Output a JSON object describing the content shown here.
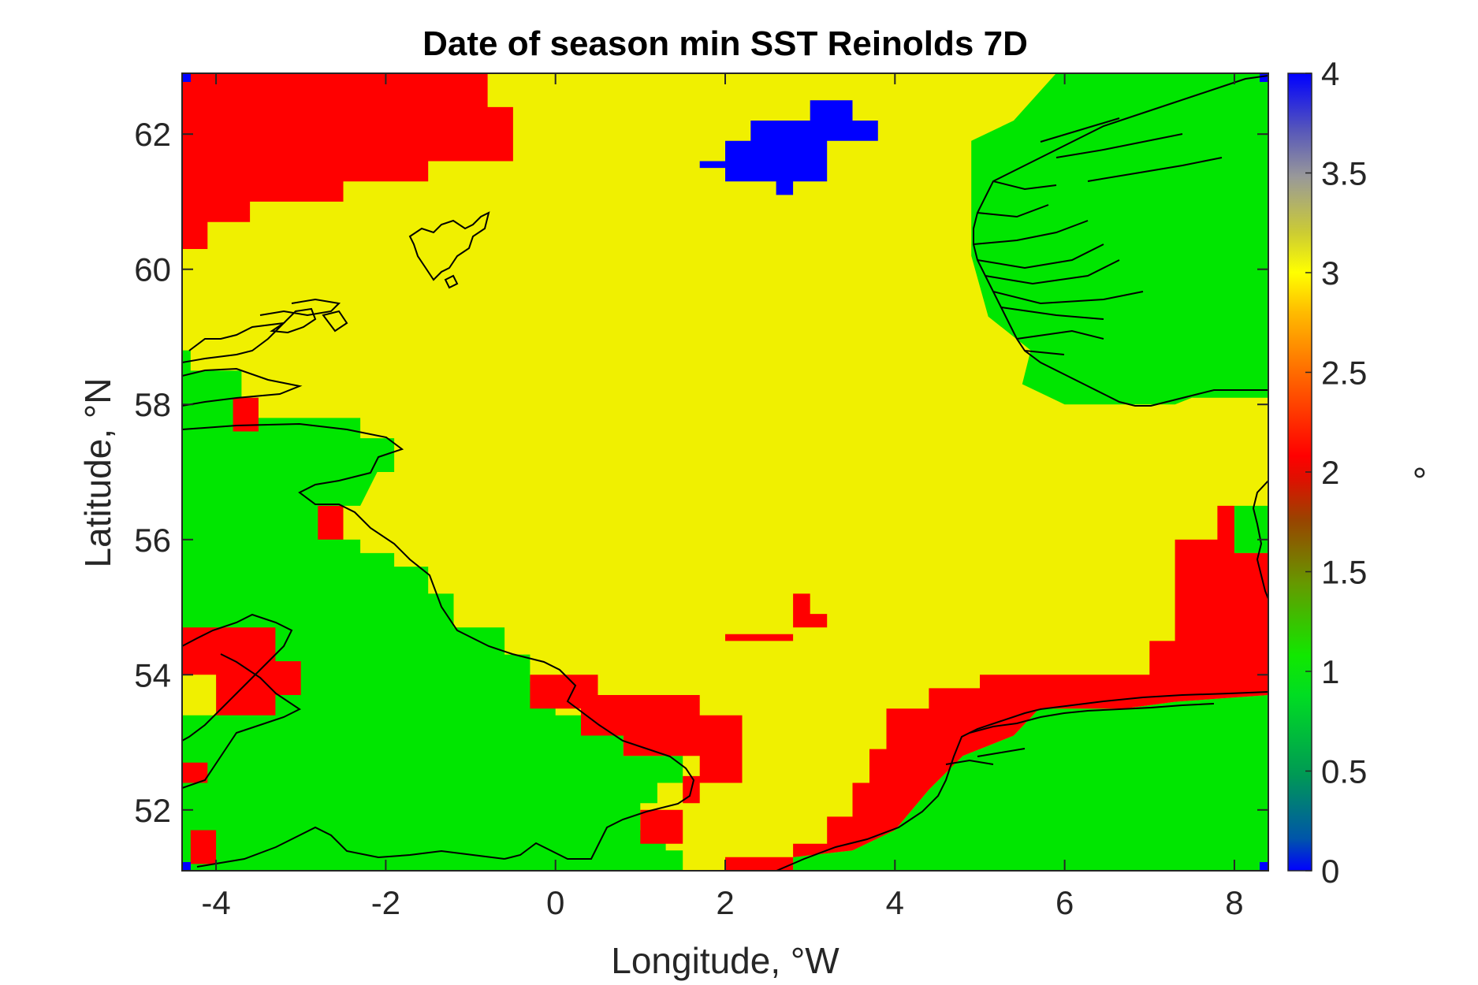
{
  "chart_data": {
    "type": "heatmap",
    "title": "Date of season min SST Reinolds 7D",
    "xlabel": "Longitude, °W",
    "ylabel": "Latitude, °N",
    "xlim": [
      -4.4,
      8.4
    ],
    "ylim": [
      51.1,
      62.9
    ],
    "xticks": [
      -4,
      -2,
      0,
      2,
      4,
      6,
      8
    ],
    "xtick_labels": [
      "-4",
      "-2",
      "0",
      "2",
      "4",
      "6",
      "8"
    ],
    "yticks": [
      52,
      54,
      56,
      58,
      60,
      62
    ],
    "ytick_labels": [
      "52",
      "54",
      "56",
      "58",
      "60",
      "62"
    ],
    "grid": false,
    "colorbar": {
      "label": "°",
      "range": [
        0,
        4
      ],
      "ticks": [
        0,
        0.5,
        1,
        1.5,
        2,
        2.5,
        3,
        3.5,
        4
      ],
      "tick_labels": [
        "0",
        "0.5",
        "1",
        "1.5",
        "2",
        "2.5",
        "3",
        "3.5",
        "4"
      ],
      "colormap": [
        "#0000ff",
        "#00cc33",
        "#00e600",
        "#66bb00",
        "#993300",
        "#ff0000",
        "#ffaa00",
        "#ffff00",
        "#f0f000",
        "#a0a0a0",
        "#0000ff"
      ]
    },
    "category_colors": {
      "0": "#0000ff",
      "1": "#00e600",
      "2": "#ff0000",
      "3": "#f0f000",
      "4": "#0000ff"
    },
    "regions": [
      {
        "value": 3,
        "note": "background sea"
      },
      {
        "value": 2,
        "polygon_lonlat": [
          [
            -4.4,
            62.9
          ],
          [
            -0.8,
            62.9
          ],
          [
            -0.8,
            62.4
          ],
          [
            -0.5,
            62.4
          ],
          [
            -0.5,
            61.6
          ],
          [
            -1.5,
            61.6
          ],
          [
            -1.5,
            61.3
          ],
          [
            -2.5,
            61.3
          ],
          [
            -2.5,
            61.0
          ],
          [
            -3.6,
            61.0
          ],
          [
            -3.6,
            60.7
          ],
          [
            -4.1,
            60.7
          ],
          [
            -4.1,
            60.3
          ],
          [
            -4.4,
            60.3
          ]
        ]
      },
      {
        "value": 4,
        "polygon_lonlat": [
          [
            1.7,
            61.6
          ],
          [
            2.0,
            61.6
          ],
          [
            2.0,
            61.9
          ],
          [
            2.3,
            61.9
          ],
          [
            2.3,
            62.2
          ],
          [
            3.0,
            62.2
          ],
          [
            3.0,
            62.5
          ],
          [
            3.5,
            62.5
          ],
          [
            3.5,
            62.2
          ],
          [
            3.8,
            62.2
          ],
          [
            3.8,
            61.9
          ],
          [
            3.2,
            61.9
          ],
          [
            3.2,
            61.3
          ],
          [
            2.8,
            61.3
          ],
          [
            2.8,
            61.1
          ],
          [
            2.6,
            61.1
          ],
          [
            2.6,
            61.3
          ],
          [
            2.0,
            61.3
          ],
          [
            2.0,
            61.5
          ],
          [
            1.7,
            61.5
          ]
        ]
      },
      {
        "value": 1,
        "polygon_lonlat": [
          [
            5.9,
            62.9
          ],
          [
            8.4,
            62.9
          ],
          [
            8.4,
            58.1
          ],
          [
            7.5,
            58.1
          ],
          [
            7.3,
            58.0
          ],
          [
            6.0,
            58.0
          ],
          [
            5.5,
            58.3
          ],
          [
            5.6,
            58.8
          ],
          [
            5.1,
            59.3
          ],
          [
            4.9,
            60.2
          ],
          [
            4.9,
            61.0
          ],
          [
            4.9,
            61.9
          ],
          [
            5.4,
            62.2
          ],
          [
            5.9,
            62.9
          ]
        ]
      },
      {
        "value": 1,
        "polygon_lonlat": [
          [
            -4.4,
            58.8
          ],
          [
            -4.3,
            58.8
          ],
          [
            -4.3,
            58.5
          ],
          [
            -3.7,
            58.5
          ],
          [
            -3.7,
            58.1
          ],
          [
            -3.5,
            58.1
          ],
          [
            -3.5,
            57.8
          ],
          [
            -2.3,
            57.8
          ],
          [
            -2.3,
            57.5
          ],
          [
            -1.9,
            57.5
          ],
          [
            -1.9,
            57.0
          ],
          [
            -2.1,
            57.0
          ],
          [
            -2.3,
            56.5
          ],
          [
            -2.5,
            56.5
          ],
          [
            -2.5,
            56.0
          ],
          [
            -2.3,
            56.0
          ],
          [
            -2.3,
            55.8
          ],
          [
            -1.9,
            55.8
          ],
          [
            -1.9,
            55.6
          ],
          [
            -1.5,
            55.6
          ],
          [
            -1.5,
            55.2
          ],
          [
            -1.2,
            55.2
          ],
          [
            -1.2,
            54.7
          ],
          [
            -0.6,
            54.7
          ],
          [
            -0.6,
            54.3
          ],
          [
            -0.3,
            54.3
          ],
          [
            -0.3,
            53.9
          ],
          [
            0.0,
            53.9
          ],
          [
            0.0,
            53.4
          ],
          [
            0.3,
            53.4
          ],
          [
            0.3,
            53.1
          ],
          [
            0.8,
            53.1
          ],
          [
            0.8,
            52.8
          ],
          [
            1.5,
            52.8
          ],
          [
            1.5,
            52.4
          ],
          [
            1.2,
            52.4
          ],
          [
            1.2,
            52.1
          ],
          [
            1.0,
            52.1
          ],
          [
            1.0,
            51.7
          ],
          [
            1.3,
            51.7
          ],
          [
            1.3,
            51.4
          ],
          [
            1.5,
            51.4
          ],
          [
            1.5,
            51.1
          ],
          [
            -4.4,
            51.1
          ]
        ]
      },
      {
        "value": 1,
        "polygon_lonlat": [
          [
            5.7,
            53.5
          ],
          [
            6.7,
            53.5
          ],
          [
            7.3,
            53.6
          ],
          [
            8.4,
            53.7
          ],
          [
            8.4,
            51.1
          ],
          [
            2.8,
            51.1
          ],
          [
            2.8,
            51.3
          ],
          [
            3.5,
            51.4
          ],
          [
            4.0,
            51.7
          ],
          [
            4.4,
            52.3
          ],
          [
            4.8,
            52.8
          ],
          [
            5.4,
            53.1
          ],
          [
            5.7,
            53.5
          ]
        ]
      },
      {
        "value": 1,
        "polygon_lonlat": [
          [
            8.0,
            56.5
          ],
          [
            8.4,
            56.5
          ],
          [
            8.4,
            55.8
          ],
          [
            8.0,
            55.8
          ]
        ]
      },
      {
        "value": 2,
        "polygon_lonlat": [
          [
            -0.3,
            54.0
          ],
          [
            0.5,
            54.0
          ],
          [
            0.5,
            53.7
          ],
          [
            1.7,
            53.7
          ],
          [
            1.7,
            53.4
          ],
          [
            2.2,
            53.4
          ],
          [
            2.2,
            52.4
          ],
          [
            1.7,
            52.4
          ],
          [
            1.7,
            52.1
          ],
          [
            1.5,
            52.1
          ],
          [
            1.5,
            51.5
          ],
          [
            1.0,
            51.5
          ],
          [
            1.0,
            52.0
          ],
          [
            1.5,
            52.0
          ],
          [
            1.5,
            52.5
          ],
          [
            1.7,
            52.5
          ],
          [
            1.7,
            52.8
          ],
          [
            0.8,
            52.8
          ],
          [
            0.8,
            53.1
          ],
          [
            0.3,
            53.1
          ],
          [
            0.3,
            53.5
          ],
          [
            -0.3,
            53.5
          ]
        ]
      },
      {
        "value": 2,
        "polygon_lonlat": [
          [
            2.0,
            51.1
          ],
          [
            2.8,
            51.1
          ],
          [
            2.8,
            51.5
          ],
          [
            3.2,
            51.5
          ],
          [
            3.2,
            51.9
          ],
          [
            3.5,
            51.9
          ],
          [
            3.5,
            52.4
          ],
          [
            3.7,
            52.4
          ],
          [
            3.7,
            52.9
          ],
          [
            3.9,
            52.9
          ],
          [
            3.9,
            53.5
          ],
          [
            4.4,
            53.5
          ],
          [
            4.4,
            53.8
          ],
          [
            5.0,
            53.8
          ],
          [
            5.0,
            54.0
          ],
          [
            7.0,
            54.0
          ],
          [
            7.0,
            54.5
          ],
          [
            7.3,
            54.5
          ],
          [
            7.3,
            56.0
          ],
          [
            7.8,
            56.0
          ],
          [
            7.8,
            56.5
          ],
          [
            8.0,
            56.5
          ],
          [
            8.0,
            55.8
          ],
          [
            8.4,
            55.8
          ],
          [
            8.4,
            53.7
          ],
          [
            7.3,
            53.6
          ],
          [
            6.7,
            53.5
          ],
          [
            5.7,
            53.5
          ],
          [
            5.4,
            53.1
          ],
          [
            4.8,
            52.8
          ],
          [
            4.4,
            52.3
          ],
          [
            4.0,
            51.7
          ],
          [
            3.5,
            51.4
          ],
          [
            2.8,
            51.3
          ],
          [
            2.0,
            51.3
          ]
        ]
      },
      {
        "value": 2,
        "polygon_lonlat": [
          [
            2.0,
            54.6
          ],
          [
            2.8,
            54.6
          ],
          [
            2.8,
            55.2
          ],
          [
            3.0,
            55.2
          ],
          [
            3.0,
            54.9
          ],
          [
            3.2,
            54.9
          ],
          [
            3.2,
            54.7
          ],
          [
            2.8,
            54.7
          ],
          [
            2.8,
            54.5
          ],
          [
            2.0,
            54.5
          ]
        ]
      },
      {
        "value": 2,
        "polygon_lonlat": [
          [
            -3.8,
            58.1
          ],
          [
            -3.5,
            58.1
          ],
          [
            -3.5,
            57.6
          ],
          [
            -3.8,
            57.6
          ]
        ]
      },
      {
        "value": 2,
        "polygon_lonlat": [
          [
            -2.8,
            56.5
          ],
          [
            -2.5,
            56.5
          ],
          [
            -2.5,
            56.0
          ],
          [
            -2.8,
            56.0
          ]
        ]
      },
      {
        "value": 2,
        "polygon_lonlat": [
          [
            -4.4,
            54.7
          ],
          [
            -3.3,
            54.7
          ],
          [
            -3.3,
            54.2
          ],
          [
            -3.0,
            54.2
          ],
          [
            -3.0,
            53.7
          ],
          [
            -3.3,
            53.7
          ],
          [
            -3.3,
            53.4
          ],
          [
            -4.0,
            53.4
          ],
          [
            -4.0,
            53.9
          ],
          [
            -4.4,
            53.9
          ]
        ]
      },
      {
        "value": 3,
        "polygon_lonlat": [
          [
            -4.4,
            54.0
          ],
          [
            -4.0,
            54.0
          ],
          [
            -4.0,
            53.4
          ],
          [
            -4.4,
            53.4
          ]
        ]
      },
      {
        "value": 2,
        "polygon_lonlat": [
          [
            -4.4,
            52.7
          ],
          [
            -4.1,
            52.7
          ],
          [
            -4.1,
            52.4
          ],
          [
            -4.4,
            52.4
          ]
        ]
      },
      {
        "value": 2,
        "polygon_lonlat": [
          [
            -4.3,
            51.7
          ],
          [
            -4.0,
            51.7
          ],
          [
            -4.0,
            51.2
          ],
          [
            -4.3,
            51.2
          ]
        ]
      }
    ],
    "corner_cells_value": 4
  }
}
